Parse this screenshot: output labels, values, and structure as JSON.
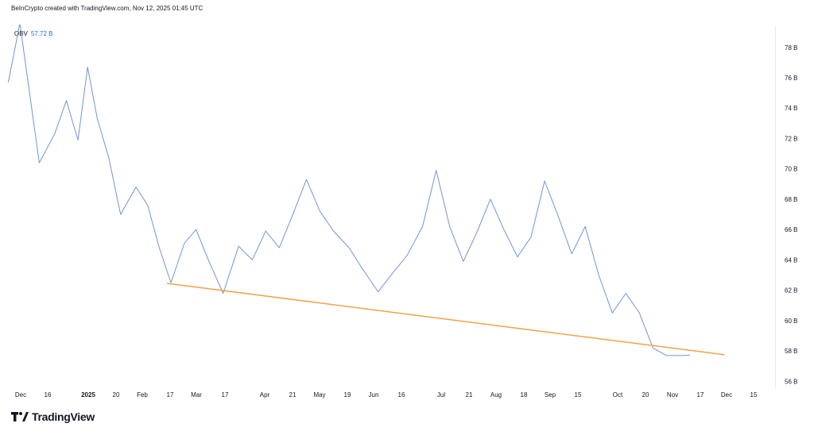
{
  "header": {
    "credit": "BeInCrypto created with TradingView.com, Nov 12, 2025 01:45 UTC"
  },
  "legend": {
    "name": "OBV",
    "value": "57.72 B"
  },
  "logo": {
    "text": "TradingView"
  },
  "colors": {
    "obv_line": "#6f95d8",
    "trendline": "#f0a24a",
    "text": "#131722",
    "legend_value": "#2962ff"
  },
  "chart_data": {
    "type": "line",
    "x_tick_labels": [
      "Dec",
      "16",
      "2025",
      "20",
      "Feb",
      "17",
      "Mar",
      "17",
      "Apr",
      "21",
      "May",
      "19",
      "Jun",
      "16",
      "Jul",
      "21",
      "Aug",
      "18",
      "Sep",
      "15",
      "Oct",
      "20",
      "Nov",
      "17",
      "Dec",
      "15"
    ],
    "y_tick_labels": [
      "78 B",
      "76 B",
      "74 B",
      "72 B",
      "70 B",
      "68 B",
      "66 B",
      "64 B",
      "62 B",
      "60 B",
      "58 B",
      "56 B"
    ],
    "ylim": [
      55.6,
      79.4
    ],
    "y_unit": "B",
    "series": [
      {
        "name": "OBV",
        "x": [
          "2024-11-25",
          "2024-12-01",
          "2024-12-11",
          "2024-12-19",
          "2024-12-25",
          "2024-12-31",
          "2025-01-05",
          "2025-01-10",
          "2025-01-16",
          "2025-01-22",
          "2025-01-30",
          "2025-02-05",
          "2025-02-11",
          "2025-02-17",
          "2025-02-24",
          "2025-03-02",
          "2025-03-09",
          "2025-03-16",
          "2025-03-24",
          "2025-03-31",
          "2025-04-07",
          "2025-04-14",
          "2025-04-21",
          "2025-04-28",
          "2025-05-05",
          "2025-05-12",
          "2025-05-20",
          "2025-05-27",
          "2025-06-04",
          "2025-06-12",
          "2025-06-19",
          "2025-06-27",
          "2025-07-04",
          "2025-07-11",
          "2025-07-18",
          "2025-07-25",
          "2025-08-01",
          "2025-08-08",
          "2025-08-15",
          "2025-08-22",
          "2025-08-29",
          "2025-09-05",
          "2025-09-12",
          "2025-09-19",
          "2025-09-26",
          "2025-10-03",
          "2025-10-10",
          "2025-10-17",
          "2025-10-24",
          "2025-10-31",
          "2025-11-07",
          "2025-11-12"
        ],
        "values": [
          75.7,
          79.6,
          70.4,
          72.3,
          74.5,
          71.9,
          76.7,
          73.3,
          70.7,
          67.0,
          68.8,
          67.6,
          64.8,
          62.5,
          65.1,
          66.0,
          63.8,
          61.8,
          64.9,
          64.0,
          65.9,
          64.8,
          67.0,
          69.3,
          67.2,
          65.9,
          64.8,
          63.4,
          61.9,
          63.2,
          64.3,
          66.2,
          69.9,
          66.2,
          63.9,
          65.8,
          68.0,
          66.0,
          64.2,
          65.5,
          69.2,
          66.9,
          64.4,
          66.2,
          63.0,
          60.5,
          61.8,
          60.5,
          58.2,
          57.7,
          57.7,
          57.72
        ]
      },
      {
        "x": [
          "2025-02-15",
          "2025-11-30"
        ],
        "values": [
          62.45,
          57.75
        ]
      }
    ]
  }
}
